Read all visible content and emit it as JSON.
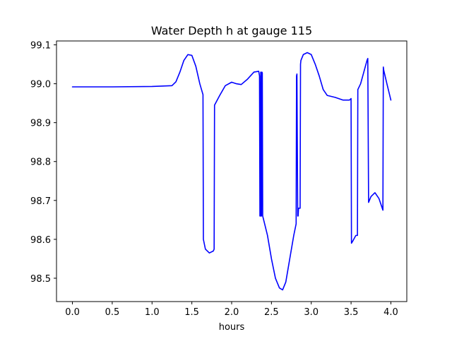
{
  "chart_data": {
    "type": "line",
    "title": "Water Depth h at gauge 115",
    "xlabel": "hours",
    "ylabel": "",
    "xlim": [
      -0.2,
      4.2
    ],
    "ylim": [
      98.44,
      99.11
    ],
    "xticks": [
      0.0,
      0.5,
      1.0,
      1.5,
      2.0,
      2.5,
      3.0,
      3.5,
      4.0
    ],
    "xtick_labels": [
      "0.0",
      "0.5",
      "1.0",
      "1.5",
      "2.0",
      "2.5",
      "3.0",
      "3.5",
      "4.0"
    ],
    "yticks": [
      98.5,
      98.6,
      98.7,
      98.8,
      98.9,
      99.0,
      99.1
    ],
    "ytick_labels": [
      "98.5",
      "98.6",
      "98.7",
      "98.8",
      "98.9",
      "99.0",
      "99.1"
    ],
    "grid": false,
    "legend": "none",
    "series": [
      {
        "color": "#0000ff",
        "x": [
          0.0,
          0.5,
          1.0,
          1.25,
          1.3,
          1.35,
          1.4,
          1.45,
          1.5,
          1.55,
          1.6,
          1.64,
          1.645,
          1.67,
          1.72,
          1.77,
          1.78,
          1.785,
          1.85,
          1.92,
          2.0,
          2.06,
          2.12,
          2.2,
          2.28,
          2.34,
          2.35,
          2.355,
          2.36,
          2.365,
          2.37,
          2.375,
          2.38,
          2.385,
          2.39,
          2.45,
          2.5,
          2.55,
          2.6,
          2.64,
          2.68,
          2.73,
          2.78,
          2.81,
          2.815,
          2.82,
          2.83,
          2.835,
          2.84,
          2.85,
          2.86,
          2.865,
          2.87,
          2.9,
          2.95,
          3.0,
          3.05,
          3.1,
          3.15,
          3.2,
          3.3,
          3.4,
          3.45,
          3.48,
          3.5,
          3.505,
          3.52,
          3.56,
          3.58,
          3.585,
          3.62,
          3.66,
          3.7,
          3.71,
          3.72,
          3.75,
          3.8,
          3.85,
          3.9,
          3.905,
          3.91,
          3.95,
          4.0
        ],
        "y": [
          98.992,
          98.992,
          98.993,
          98.995,
          99.005,
          99.03,
          99.06,
          99.075,
          99.073,
          99.045,
          99.0,
          98.972,
          98.6,
          98.575,
          98.565,
          98.57,
          98.575,
          98.945,
          98.97,
          98.995,
          99.004,
          99.0,
          98.998,
          99.012,
          99.03,
          99.032,
          99.02,
          98.66,
          98.66,
          99.03,
          98.66,
          98.66,
          99.03,
          99.028,
          98.66,
          98.61,
          98.55,
          98.5,
          98.475,
          98.47,
          98.49,
          98.55,
          98.61,
          98.64,
          99.02,
          99.025,
          98.66,
          98.66,
          98.68,
          98.68,
          98.68,
          99.05,
          99.06,
          99.075,
          99.08,
          99.075,
          99.05,
          99.02,
          98.985,
          98.97,
          98.965,
          98.958,
          98.958,
          98.958,
          98.962,
          98.59,
          98.595,
          98.61,
          98.61,
          98.985,
          99.0,
          99.03,
          99.06,
          99.065,
          98.695,
          98.71,
          98.72,
          98.705,
          98.675,
          99.043,
          99.035,
          99.0,
          98.958
        ]
      }
    ]
  }
}
